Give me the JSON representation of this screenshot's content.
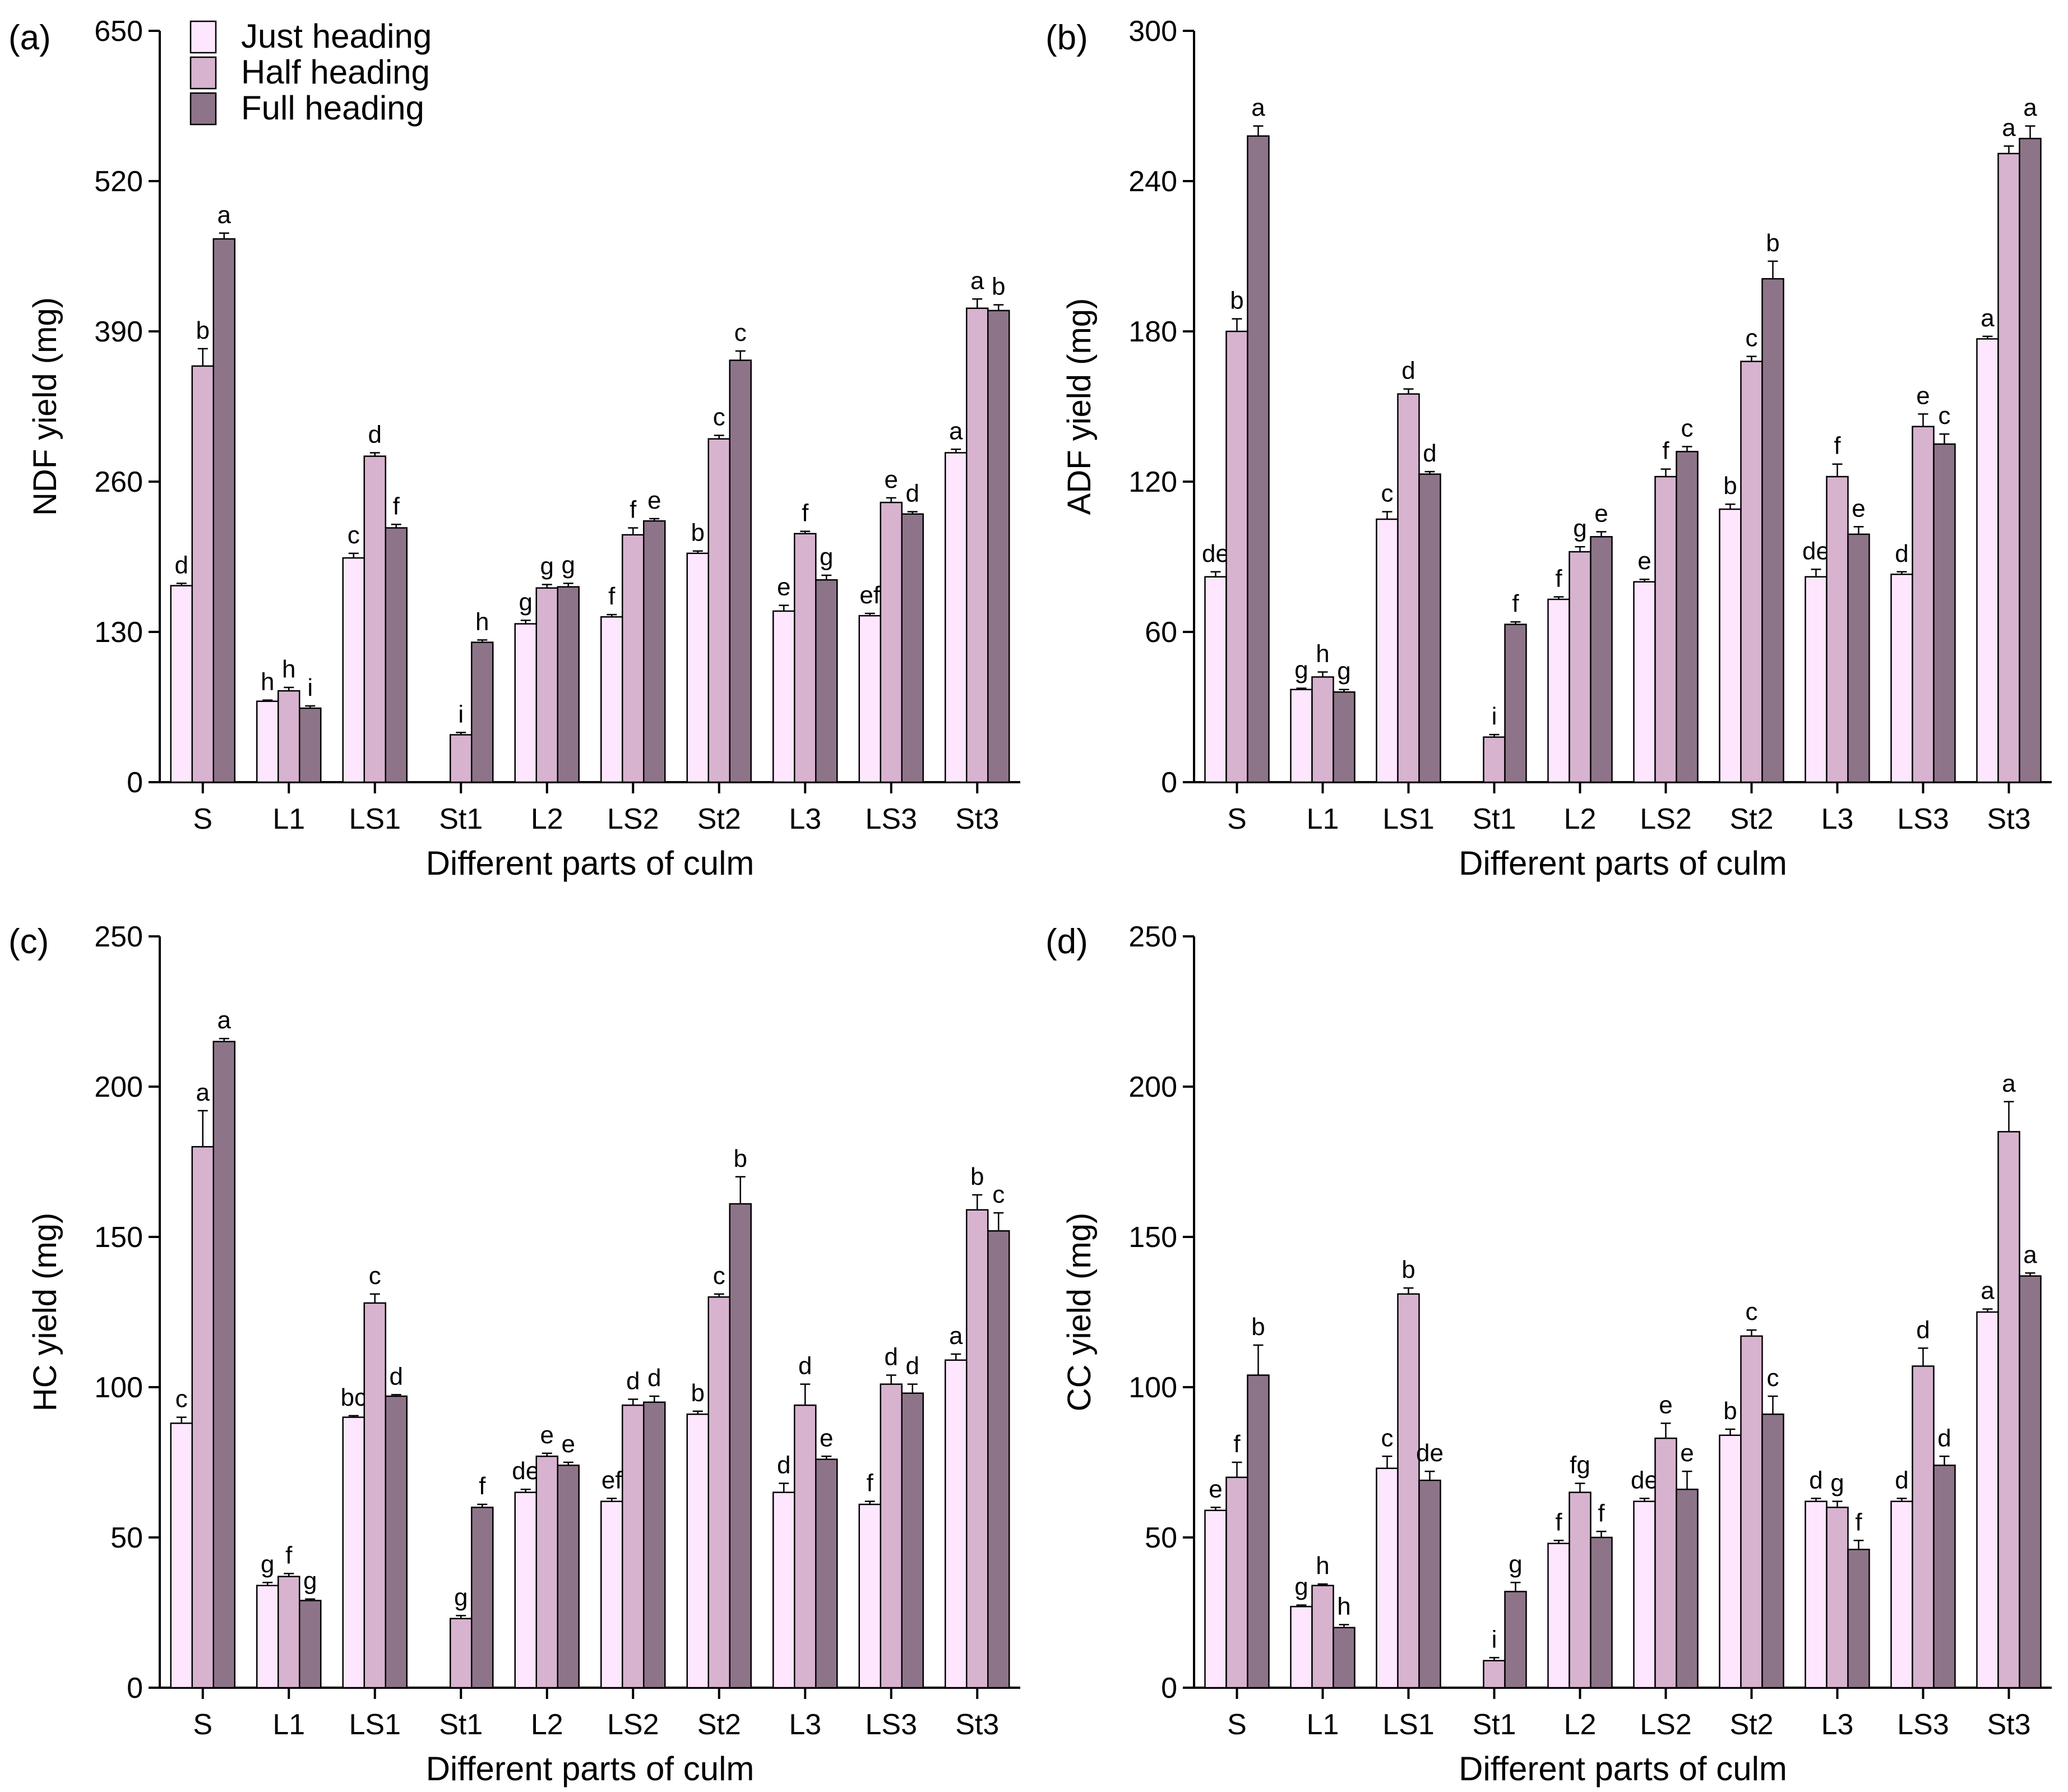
{
  "legend": {
    "entries": [
      "Just heading",
      "Half heading",
      "Full heading"
    ],
    "colors": [
      "#ffe6ff",
      "#d7b3cf",
      "#8e7489"
    ]
  },
  "chart_data": [
    {
      "type": "bar",
      "panel": "(a)",
      "ylabel": "NDF yield (mg)",
      "xlabel": "Different parts of culm",
      "ylim": [
        0,
        650
      ],
      "yticks": [
        "0",
        "130",
        "260",
        "390",
        "520",
        "650"
      ],
      "categories": [
        "S",
        "L1",
        "LS1",
        "St1",
        "L2",
        "LS2",
        "St2",
        "L3",
        "LS3",
        "St3"
      ],
      "series": [
        {
          "name": "Just heading",
          "values": [
            170,
            70,
            194,
            0,
            137,
            143,
            198,
            148,
            144,
            285
          ],
          "errors": [
            2,
            1,
            4,
            0,
            3,
            2,
            2,
            5,
            2,
            3
          ],
          "labels": [
            "d",
            "h",
            "c",
            "",
            "g",
            "f",
            "b",
            "e",
            "ef",
            "a"
          ]
        },
        {
          "name": "Half heading",
          "values": [
            360,
            79,
            282,
            41,
            168,
            214,
            297,
            215,
            242,
            410
          ],
          "errors": [
            15,
            3,
            3,
            2,
            3,
            6,
            3,
            2,
            4,
            8
          ],
          "labels": [
            "b",
            "h",
            "d",
            "i",
            "g",
            "f",
            "c",
            "f",
            "e",
            "a"
          ]
        },
        {
          "name": "Full heading",
          "values": [
            470,
            64,
            220,
            121,
            169,
            226,
            365,
            175,
            232,
            408
          ],
          "errors": [
            5,
            2,
            3,
            2,
            3,
            2,
            8,
            4,
            2,
            5
          ],
          "labels": [
            "a",
            "i",
            "f",
            "h",
            "g",
            "e",
            "c",
            "g",
            "d",
            "b"
          ]
        }
      ]
    },
    {
      "type": "bar",
      "panel": "(b)",
      "ylabel": "ADF yield (mg)",
      "xlabel": "Different parts of culm",
      "ylim": [
        0,
        300
      ],
      "yticks": [
        "0",
        "60",
        "120",
        "180",
        "240",
        "300"
      ],
      "categories": [
        "S",
        "L1",
        "LS1",
        "St1",
        "L2",
        "LS2",
        "St2",
        "L3",
        "LS3",
        "St3"
      ],
      "series": [
        {
          "name": "Just heading",
          "values": [
            82,
            37,
            105,
            0,
            73,
            80,
            109,
            82,
            83,
            177
          ],
          "errors": [
            2,
            0.5,
            3,
            0,
            1,
            1,
            2,
            3,
            1,
            1
          ],
          "labels": [
            "de",
            "g",
            "c",
            "",
            "f",
            "e",
            "b",
            "de",
            "d",
            "a"
          ]
        },
        {
          "name": "Half heading",
          "values": [
            180,
            42,
            155,
            18,
            92,
            122,
            168,
            122,
            142,
            251
          ],
          "errors": [
            5,
            2,
            2,
            1,
            2,
            3,
            2,
            5,
            5,
            3
          ],
          "labels": [
            "b",
            "h",
            "d",
            "i",
            "g",
            "f",
            "c",
            "f",
            "e",
            "a"
          ]
        },
        {
          "name": "Full heading",
          "values": [
            258,
            36,
            123,
            63,
            98,
            132,
            201,
            99,
            135,
            257
          ],
          "errors": [
            4,
            1,
            1,
            1,
            2,
            2,
            7,
            3,
            4,
            5
          ],
          "labels": [
            "a",
            "g",
            "d",
            "f",
            "e",
            "c",
            "b",
            "e",
            "c",
            "a"
          ]
        }
      ]
    },
    {
      "type": "bar",
      "panel": "(c)",
      "ylabel": "HC yield (mg)",
      "xlabel": "Different parts of culm",
      "ylim": [
        0,
        250
      ],
      "yticks": [
        "0",
        "50",
        "100",
        "150",
        "200",
        "250"
      ],
      "categories": [
        "S",
        "L1",
        "LS1",
        "St1",
        "L2",
        "LS2",
        "St2",
        "L3",
        "LS3",
        "St3"
      ],
      "series": [
        {
          "name": "Just heading",
          "values": [
            88,
            34,
            90,
            0,
            65,
            62,
            91,
            65,
            61,
            109
          ],
          "errors": [
            2,
            1,
            0.5,
            0,
            1,
            1,
            1,
            3,
            1,
            2
          ],
          "labels": [
            "c",
            "g",
            "bc",
            "",
            "de",
            "ef",
            "b",
            "d",
            "f",
            "a"
          ]
        },
        {
          "name": "Half heading",
          "values": [
            180,
            37,
            128,
            23,
            77,
            94,
            130,
            94,
            101,
            159
          ],
          "errors": [
            12,
            1,
            3,
            1,
            1,
            2,
            1,
            7,
            3,
            5
          ],
          "labels": [
            "a",
            "f",
            "c",
            "g",
            "e",
            "d",
            "c",
            "d",
            "d",
            "b"
          ]
        },
        {
          "name": "Full heading",
          "values": [
            215,
            29,
            97,
            60,
            74,
            95,
            161,
            76,
            98,
            152
          ],
          "errors": [
            1,
            0.5,
            0.5,
            1,
            1,
            2,
            9,
            1,
            3,
            6
          ],
          "labels": [
            "a",
            "g",
            "d",
            "f",
            "e",
            "d",
            "b",
            "e",
            "d",
            "c"
          ]
        }
      ]
    },
    {
      "type": "bar",
      "panel": "(d)",
      "ylabel": "CC yield (mg)",
      "xlabel": "Different parts of culm",
      "ylim": [
        0,
        250
      ],
      "yticks": [
        "0",
        "50",
        "100",
        "150",
        "200",
        "250"
      ],
      "categories": [
        "S",
        "L1",
        "LS1",
        "St1",
        "L2",
        "LS2",
        "St2",
        "L3",
        "LS3",
        "St3"
      ],
      "series": [
        {
          "name": "Just heading",
          "values": [
            59,
            27,
            73,
            0,
            48,
            62,
            84,
            62,
            62,
            125
          ],
          "errors": [
            1,
            0.5,
            4,
            0,
            1,
            1,
            2,
            1,
            1,
            1
          ],
          "labels": [
            "e",
            "g",
            "c",
            "",
            "f",
            "de",
            "b",
            "d",
            "d",
            "a"
          ]
        },
        {
          "name": "Half heading",
          "values": [
            70,
            34,
            131,
            9,
            65,
            83,
            117,
            60,
            107,
            185
          ],
          "errors": [
            5,
            0.5,
            2,
            1,
            3,
            5,
            2,
            2,
            6,
            10
          ],
          "labels": [
            "f",
            "h",
            "b",
            "i",
            "fg",
            "e",
            "c",
            "g",
            "d",
            "a"
          ]
        },
        {
          "name": "Full heading",
          "values": [
            104,
            20,
            69,
            32,
            50,
            66,
            91,
            46,
            74,
            137
          ],
          "errors": [
            10,
            1,
            3,
            3,
            2,
            6,
            6,
            3,
            3,
            1
          ],
          "labels": [
            "b",
            "h",
            "de",
            "g",
            "f",
            "e",
            "c",
            "f",
            "d",
            "a"
          ]
        }
      ]
    }
  ]
}
